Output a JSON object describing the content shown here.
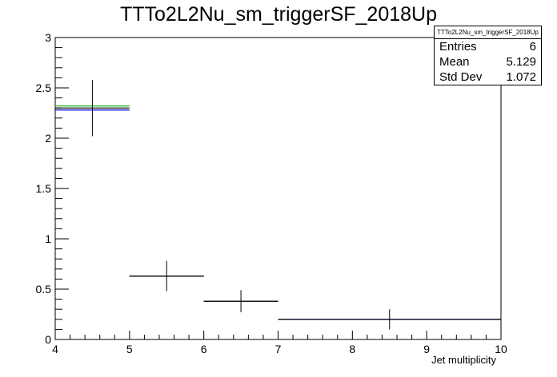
{
  "chart_data": {
    "type": "histogram",
    "title": "TTTo2L2Nu_sm_triggerSF_2018Up",
    "xlabel": "Jet multiplicity",
    "ylabel": "",
    "xlim": [
      4,
      10
    ],
    "ylim": [
      0,
      3
    ],
    "x_ticks": [
      "4",
      "5",
      "6",
      "7",
      "8",
      "9",
      "10"
    ],
    "y_ticks": [
      "0",
      "0.5",
      "1",
      "1.5",
      "2",
      "2.5",
      "3"
    ],
    "legend": "none",
    "stats_box": {
      "title": "TTTo2L2Nu_sm_triggerSF_2018Up",
      "rows": [
        {
          "label": "Entries",
          "value": "6"
        },
        {
          "label": "Mean",
          "value": "5.129"
        },
        {
          "label": "Std Dev",
          "value": "1.072"
        }
      ]
    },
    "bins": [
      {
        "low": 4,
        "high": 5,
        "center": 4.5,
        "value": 2.3,
        "error": 0.28
      },
      {
        "low": 5,
        "high": 6,
        "center": 5.5,
        "value": 0.63,
        "error": 0.15
      },
      {
        "low": 6,
        "high": 7,
        "center": 6.5,
        "value": 0.38,
        "error": 0.11
      },
      {
        "low": 7,
        "high": 10,
        "center": 8.5,
        "value": 0.2,
        "error": 0.1
      }
    ],
    "series": [
      {
        "color": "#00aa00",
        "values": [
          2.32,
          0.63,
          0.38,
          0.2
        ]
      },
      {
        "color": "#0000cc",
        "values": [
          2.28,
          0.63,
          0.38,
          0.2
        ]
      },
      {
        "color": "#000000",
        "values": [
          2.3,
          0.63,
          0.38,
          0.2
        ]
      }
    ]
  }
}
